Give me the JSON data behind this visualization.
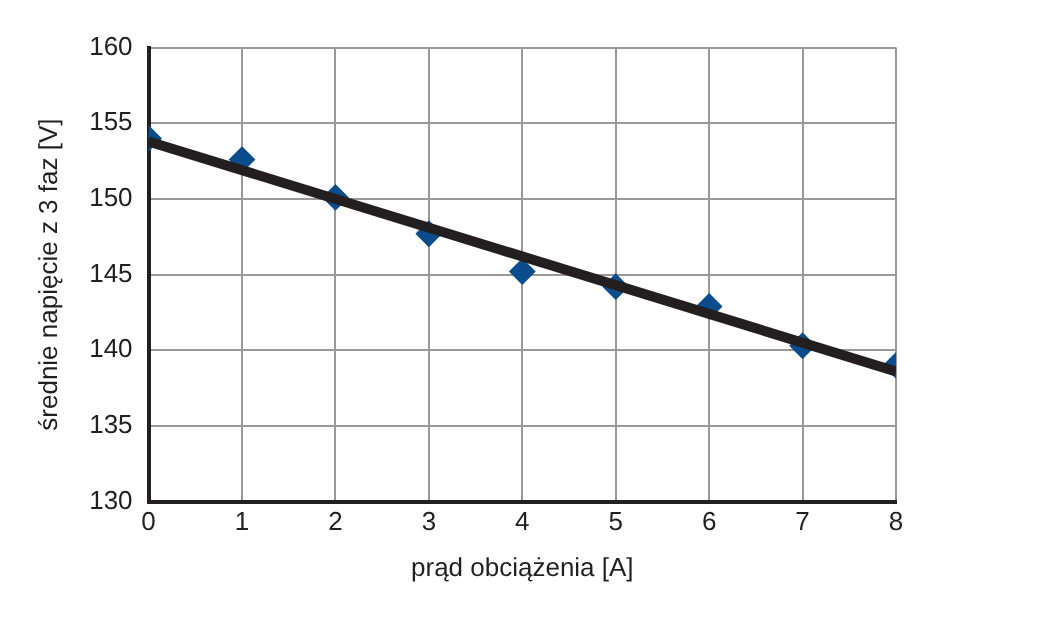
{
  "chart_data": {
    "type": "scatter",
    "xlabel": "prąd obciążenia [A]",
    "ylabel": "średnie napięcie z 3 faz [V]",
    "x": [
      0,
      1,
      2,
      3,
      4,
      5,
      6,
      7,
      8
    ],
    "series": [
      {
        "color": "#0b4d8c",
        "marker": "diamond",
        "values": [
          154,
          152.6,
          150.1,
          147.7,
          145.2,
          144.2,
          142.9,
          140.3,
          139
        ]
      },
      {
        "type": "line",
        "color": "#231f20",
        "marker": "none",
        "x": [
          0,
          8
        ],
        "values": [
          153.8,
          138.6
        ]
      }
    ],
    "xlim": [
      0,
      8
    ],
    "xticks": [
      0,
      1,
      2,
      3,
      4,
      5,
      6,
      7,
      8
    ],
    "ylim": [
      130,
      160
    ],
    "yticks": [
      130,
      135,
      140,
      145,
      150,
      155,
      160
    ],
    "grid": true,
    "legend": false
  }
}
